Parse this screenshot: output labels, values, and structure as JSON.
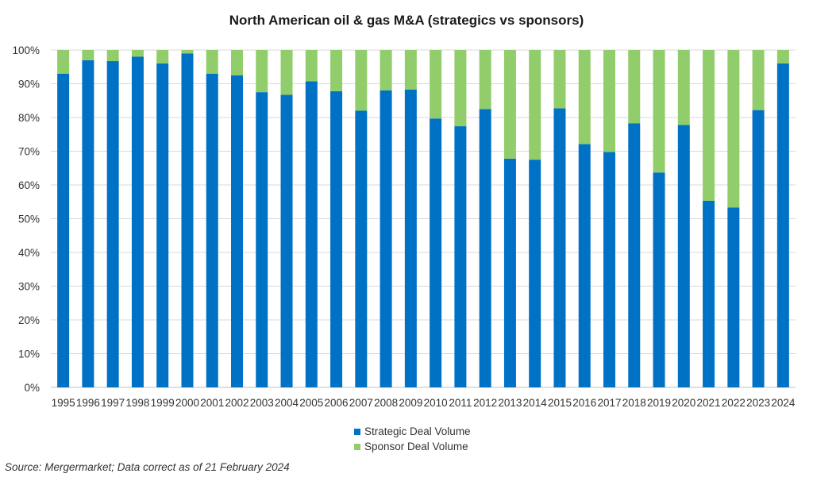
{
  "chart_data": {
    "type": "bar",
    "stacked": true,
    "title": "North American oil & gas M&A (strategics vs sponsors)",
    "categories": [
      "1995",
      "1996",
      "1997",
      "1998",
      "1999",
      "2000",
      "2001",
      "2002",
      "2003",
      "2004",
      "2005",
      "2006",
      "2007",
      "2008",
      "2009",
      "2010",
      "2011",
      "2012",
      "2013",
      "2014",
      "2015",
      "2016",
      "2017",
      "2018",
      "2019",
      "2020",
      "2021",
      "2022",
      "2023",
      "2024"
    ],
    "series": [
      {
        "name": "Strategic Deal Volume",
        "color": "#0072c6",
        "values": [
          93,
          97,
          96.7,
          98,
          96,
          99,
          93,
          92.5,
          87.5,
          86.7,
          90.7,
          87.8,
          82,
          88,
          88.3,
          79.7,
          77.4,
          82.5,
          67.8,
          67.5,
          82.7,
          72.1,
          69.8,
          78.3,
          63.7,
          77.8,
          55.3,
          53.3,
          82.2,
          96
        ]
      },
      {
        "name": "Sponsor Deal Volume",
        "color": "#92cd6b",
        "values": [
          7,
          3,
          3.3,
          2,
          4,
          1,
          7,
          7.5,
          12.5,
          13.3,
          9.3,
          12.2,
          18,
          12,
          11.7,
          20.3,
          22.6,
          17.5,
          32.2,
          32.5,
          17.3,
          27.9,
          30.2,
          21.7,
          36.3,
          22.2,
          44.7,
          46.7,
          17.8,
          4
        ]
      }
    ],
    "y_ticks": [
      "0%",
      "10%",
      "20%",
      "30%",
      "40%",
      "50%",
      "60%",
      "70%",
      "80%",
      "90%",
      "100%"
    ],
    "ylim": [
      0,
      100
    ],
    "grid": true,
    "legend_position": "bottom"
  },
  "source_note": "Source: Mergermarket; Data correct as of 21 February 2024"
}
